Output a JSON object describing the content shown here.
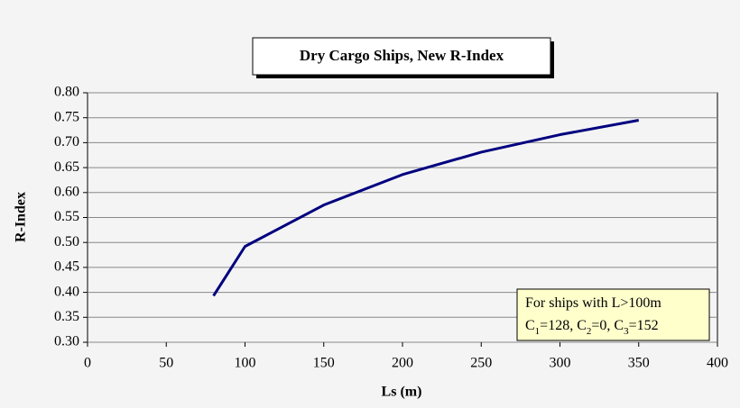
{
  "chart_data": {
    "type": "line",
    "title": "Dry Cargo Ships, New R-Index",
    "x_label": "Ls (m)",
    "y_label": "R-Index",
    "x": [
      80,
      100,
      150,
      200,
      250,
      300,
      350
    ],
    "series": [
      {
        "color": "#000080",
        "values": [
          0.393,
          0.492,
          0.575,
          0.636,
          0.681,
          0.716,
          0.745
        ]
      }
    ],
    "xlim": [
      0,
      400
    ],
    "xticks": [
      0,
      50,
      100,
      150,
      200,
      250,
      300,
      350,
      400
    ],
    "ylim": [
      0.3,
      0.8
    ],
    "yticks": [
      {
        "value": 0.3,
        "label": "0.30"
      },
      {
        "value": 0.35,
        "label": "0.35"
      },
      {
        "value": 0.4,
        "label": "0.40"
      },
      {
        "value": 0.45,
        "label": "0.45"
      },
      {
        "value": 0.5,
        "label": "0.50"
      },
      {
        "value": 0.55,
        "label": "0.55"
      },
      {
        "value": 0.6,
        "label": "0.60"
      },
      {
        "value": 0.65,
        "label": "0.65"
      },
      {
        "value": 0.7,
        "label": "0.70"
      },
      {
        "value": 0.75,
        "label": "0.75"
      },
      {
        "value": 0.8,
        "label": "0.80"
      }
    ],
    "grid": true,
    "annotation": {
      "lines": [
        [
          "For ships with L>100m"
        ],
        [
          "C",
          "1",
          "=128, C",
          "2",
          "=0, C",
          "3",
          "=152"
        ]
      ]
    }
  }
}
